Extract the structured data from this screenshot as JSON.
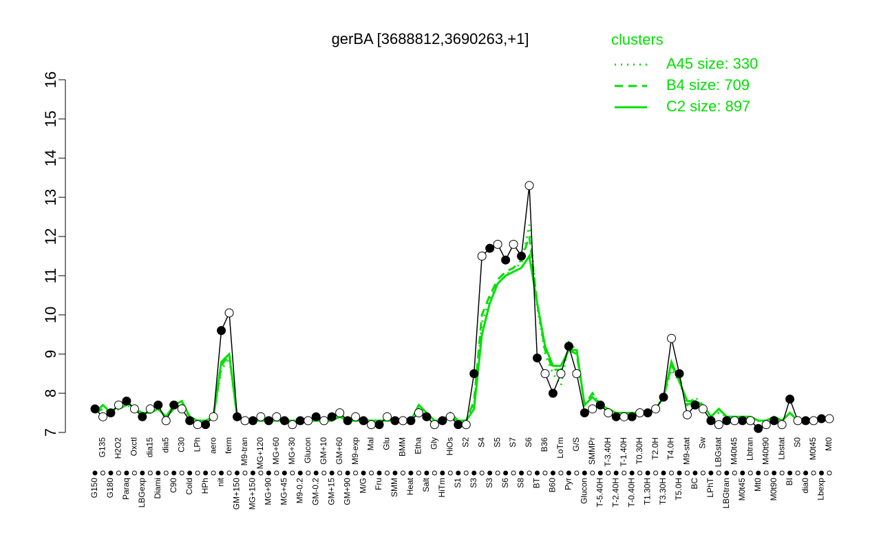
{
  "chart_data": {
    "type": "line",
    "title": "gerBA [3688812,3690263,+1]",
    "categories": [
      "G150",
      "G135",
      "G180",
      "H2O2",
      "Paraq",
      "Oxctl",
      "LBGexp",
      "dia15",
      "Diami",
      "dia5",
      "C90",
      "C30",
      "Cold",
      "LPh",
      "HPh",
      "aero",
      "nit",
      "ferm",
      "GM+150",
      "M9-tran",
      "MG+150",
      "MG+120",
      "MG+90",
      "MG+60",
      "MG+45",
      "MG+30",
      "M9-0.2",
      "Glucon",
      "GM-0.2",
      "GM+10",
      "GM+15",
      "GM+60",
      "GM+90",
      "M9-exp",
      "M/G",
      "Mal",
      "Fru",
      "Glu",
      "SMM",
      "BMM",
      "Heat",
      "Etha",
      "Salt",
      "Gly",
      "HiTm",
      "HiOs",
      "S1",
      "S2",
      "S3",
      "S4",
      "S3",
      "S5",
      "S6",
      "S7",
      "S8",
      "S6",
      "BT",
      "B36",
      "B60",
      "LoTm",
      "Pyr",
      "G/S",
      "Glucon",
      "SMMPr",
      "T-5.40H",
      "T-3.40H",
      "T-2.40H",
      "T-1.40H",
      "T-0.40H",
      "T0.30H",
      "T1.30H",
      "T2.0H",
      "T3.30H",
      "T4.0H",
      "T5.0H",
      "M9-stat",
      "BC",
      "Sw",
      "LPhT",
      "LBGstat",
      "LBGtran",
      "M40t45",
      "M0t45",
      "Lbtran",
      "Mt0",
      "M40t90",
      "M0t90",
      "Lbstat",
      "BI",
      "S0",
      "dia0",
      "M0t45",
      "Lbexp",
      "Mt0"
    ],
    "values": [
      7.6,
      7.4,
      7.5,
      7.7,
      7.8,
      7.6,
      7.4,
      7.6,
      7.7,
      7.3,
      7.7,
      7.6,
      7.3,
      7.2,
      7.2,
      7.4,
      9.6,
      10.05,
      7.4,
      7.3,
      7.3,
      7.4,
      7.3,
      7.4,
      7.3,
      7.2,
      7.3,
      7.3,
      7.4,
      7.3,
      7.4,
      7.5,
      7.3,
      7.4,
      7.3,
      7.2,
      7.2,
      7.4,
      7.3,
      7.3,
      7.3,
      7.5,
      7.4,
      7.2,
      7.3,
      7.4,
      7.2,
      7.2,
      8.5,
      11.5,
      11.7,
      11.8,
      11.4,
      11.8,
      11.5,
      13.3,
      8.9,
      8.5,
      8.0,
      8.5,
      9.2,
      8.5,
      7.5,
      7.6,
      7.7,
      7.5,
      7.4,
      7.4,
      7.4,
      7.5,
      7.5,
      7.6,
      7.9,
      9.4,
      8.5,
      7.45,
      7.7,
      7.6,
      7.3,
      7.2,
      7.3,
      7.3,
      7.3,
      7.3,
      7.1,
      7.2,
      7.3,
      7.2,
      7.85,
      7.3,
      7.3,
      7.3,
      7.35,
      7.35
    ],
    "color": "#000000",
    "legend_title": "clusters",
    "series": [
      {
        "name": "A45 size: 330",
        "color": "#00e000",
        "dash": "dotted",
        "values": [
          7.5,
          7.6,
          7.5,
          7.6,
          7.7,
          7.6,
          7.5,
          7.5,
          7.6,
          7.4,
          7.6,
          7.7,
          7.4,
          7.3,
          7.3,
          7.4,
          8.6,
          8.9,
          7.4,
          7.3,
          7.3,
          7.3,
          7.3,
          7.3,
          7.3,
          7.3,
          7.3,
          7.3,
          7.3,
          7.3,
          7.3,
          7.4,
          7.3,
          7.3,
          7.3,
          7.3,
          7.3,
          7.3,
          7.3,
          7.3,
          7.3,
          7.6,
          7.4,
          7.3,
          7.3,
          7.4,
          7.3,
          7.3,
          7.7,
          9.8,
          10.4,
          10.8,
          11.0,
          11.2,
          11.3,
          12.3,
          10.2,
          9.0,
          8.5,
          8.2,
          9.3,
          9.1,
          7.7,
          8.0,
          7.7,
          7.6,
          7.5,
          7.5,
          7.5,
          7.5,
          7.5,
          7.6,
          7.9,
          8.6,
          8.3,
          7.7,
          7.9,
          7.7,
          7.4,
          7.5,
          7.4,
          7.4,
          7.4,
          7.4,
          7.3,
          7.3,
          7.4,
          7.3,
          7.5,
          7.3,
          7.3,
          7.3,
          7.35,
          7.35
        ]
      },
      {
        "name": "B4 size: 709",
        "color": "#00e000",
        "dash": "dashed",
        "values": [
          7.5,
          7.6,
          7.5,
          7.6,
          7.7,
          7.6,
          7.5,
          7.5,
          7.6,
          7.4,
          7.6,
          7.7,
          7.4,
          7.3,
          7.3,
          7.4,
          8.7,
          9.0,
          7.4,
          7.3,
          7.3,
          7.3,
          7.3,
          7.3,
          7.3,
          7.3,
          7.3,
          7.3,
          7.3,
          7.3,
          7.3,
          7.4,
          7.3,
          7.3,
          7.3,
          7.3,
          7.3,
          7.3,
          7.3,
          7.3,
          7.3,
          7.6,
          7.4,
          7.3,
          7.3,
          7.4,
          7.3,
          7.3,
          7.8,
          10.0,
          10.5,
          10.9,
          11.1,
          11.2,
          11.4,
          12.0,
          10.3,
          9.1,
          8.6,
          8.6,
          9.1,
          9.0,
          7.7,
          8.0,
          7.7,
          7.6,
          7.5,
          7.5,
          7.5,
          7.5,
          7.5,
          7.6,
          7.9,
          8.7,
          8.4,
          7.7,
          7.8,
          7.7,
          7.4,
          7.6,
          7.4,
          7.4,
          7.4,
          7.4,
          7.3,
          7.3,
          7.4,
          7.3,
          7.5,
          7.3,
          7.3,
          7.3,
          7.35,
          7.35
        ]
      },
      {
        "name": "C2 size: 897",
        "color": "#00e000",
        "dash": "solid",
        "values": [
          7.5,
          7.7,
          7.5,
          7.7,
          7.8,
          7.6,
          7.5,
          7.5,
          7.6,
          7.4,
          7.7,
          7.8,
          7.4,
          7.3,
          7.3,
          7.4,
          8.8,
          9.0,
          7.4,
          7.3,
          7.3,
          7.3,
          7.3,
          7.3,
          7.3,
          7.3,
          7.3,
          7.3,
          7.3,
          7.3,
          7.3,
          7.4,
          7.3,
          7.3,
          7.3,
          7.3,
          7.3,
          7.3,
          7.3,
          7.3,
          7.3,
          7.7,
          7.5,
          7.3,
          7.3,
          7.5,
          7.3,
          7.3,
          7.6,
          9.5,
          10.3,
          10.8,
          11.0,
          11.1,
          11.2,
          11.5,
          10.3,
          9.2,
          8.7,
          8.7,
          9.1,
          9.1,
          7.7,
          7.9,
          7.7,
          7.6,
          7.5,
          7.5,
          7.5,
          7.5,
          7.5,
          7.6,
          7.9,
          8.8,
          8.3,
          7.8,
          7.8,
          7.7,
          7.4,
          7.6,
          7.4,
          7.4,
          7.4,
          7.4,
          7.3,
          7.3,
          7.4,
          7.3,
          7.5,
          7.3,
          7.3,
          7.3,
          7.35,
          7.35
        ]
      }
    ],
    "ylim": [
      7,
      16
    ],
    "yticks": [
      7,
      8,
      9,
      10,
      11,
      12,
      13,
      14,
      15,
      16
    ]
  }
}
